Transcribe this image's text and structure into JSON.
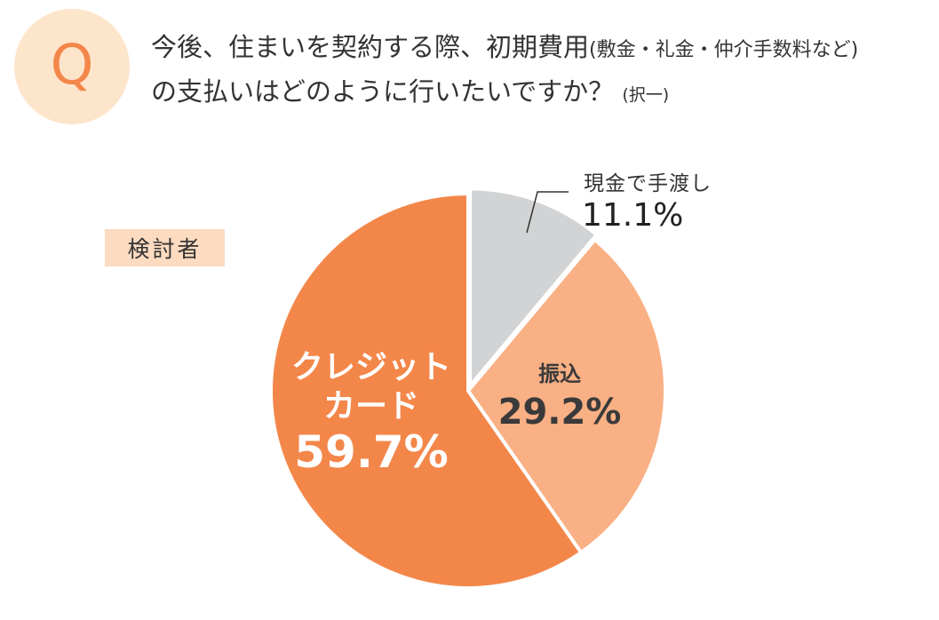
{
  "header": {
    "q_icon": "Q",
    "question_line1_main": "今後、住まいを契約する際、初期費用",
    "question_line1_note": "(敷金・礼金・仲介手数料など)",
    "question_line2_main": "の支払いはどのように行いたいですか？",
    "question_line2_note": "(択一)"
  },
  "respondent_badge": "検討者",
  "colors": {
    "credit_card": "#f3874a",
    "transfer": "#f9b084",
    "cash": "#d1d3d4",
    "q_circle": "#fde5cc",
    "badge_bg": "#fddbc0"
  },
  "chart_data": {
    "type": "pie",
    "title": "今後、住まいを契約する際、初期費用(敷金・礼金・仲介手数料など)の支払いはどのように行いたいですか？(択一)",
    "subtitle": "検討者",
    "start_angle": "12 o'clock, clockwise",
    "slices": [
      {
        "label": "現金で手渡し",
        "value": 11.1,
        "display": "11.1%",
        "color": "#d1d3d4",
        "exploded": true
      },
      {
        "label": "振込",
        "value": 29.2,
        "display": "29.2%",
        "color": "#f9b084"
      },
      {
        "label": "クレジットカード",
        "value": 59.7,
        "display": "59.7%",
        "color": "#f3874a"
      }
    ]
  },
  "labels": {
    "cash_name": "現金で手渡し",
    "cash_pct": "11.1%",
    "transfer_name": "振込",
    "transfer_pct": "29.2%",
    "credit_name_line1": "クレジット",
    "credit_name_line2": "カード",
    "credit_pct": "59.7%"
  }
}
